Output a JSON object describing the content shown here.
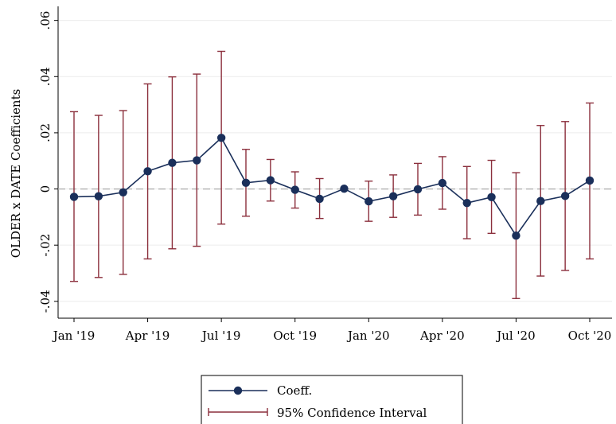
{
  "chart_data": {
    "type": "line",
    "ylabel": "OLDER x DATE Coefficients",
    "xlabel": "",
    "x": [
      "Jan '19",
      "Feb '19",
      "Mar '19",
      "Apr '19",
      "May '19",
      "Jun '19",
      "Jul '19",
      "Aug '19",
      "Sep '19",
      "Oct '19",
      "Nov '19",
      "Dec '19",
      "Jan '20",
      "Feb '20",
      "Mar '20",
      "Apr '20",
      "May '20",
      "Jun '20",
      "Jul '20",
      "Aug '20",
      "Sep '20",
      "Oct '20"
    ],
    "x_ticks": [
      "Jan '19",
      "Apr '19",
      "Jul '19",
      "Oct '19",
      "Jan '20",
      "Apr '20",
      "Jul '20",
      "Oct '20"
    ],
    "y_ticks": [
      "-.04",
      "-.02",
      "0",
      ".02",
      ".04",
      ".06"
    ],
    "y_tick_values": [
      -0.04,
      -0.02,
      0,
      0.02,
      0.04,
      0.06
    ],
    "ylim": [
      -0.046,
      0.065
    ],
    "reference_line": 0,
    "grid": true,
    "legend_position": "bottom",
    "series": [
      {
        "name": "Coeff.",
        "values": [
          -0.0028,
          -0.0026,
          -0.0012,
          0.0063,
          0.0093,
          0.0102,
          0.0182,
          0.0022,
          0.0031,
          -0.0003,
          -0.0035,
          0.0001,
          -0.0044,
          -0.0026,
          -0.0001,
          0.0021,
          -0.005,
          -0.0029,
          -0.0166,
          -0.0043,
          -0.0025,
          0.003
        ],
        "color": "#1a2f5a"
      },
      {
        "name": "95% Confidence Interval",
        "lower": [
          -0.0329,
          -0.0315,
          -0.0304,
          -0.0249,
          -0.0213,
          -0.0204,
          -0.0125,
          -0.0097,
          -0.0043,
          -0.0068,
          -0.0105,
          0.0001,
          -0.0115,
          -0.0101,
          -0.0093,
          -0.0072,
          -0.0177,
          -0.0158,
          -0.039,
          -0.031,
          -0.029,
          -0.0249
        ],
        "upper": [
          0.0275,
          0.0262,
          0.0279,
          0.0374,
          0.0399,
          0.0409,
          0.049,
          0.0141,
          0.0105,
          0.0061,
          0.0037,
          0.0001,
          0.0028,
          0.005,
          0.0091,
          0.0115,
          0.008,
          0.0102,
          0.0058,
          0.0226,
          0.024,
          0.0306
        ],
        "color": "#8b2f3c"
      }
    ]
  }
}
